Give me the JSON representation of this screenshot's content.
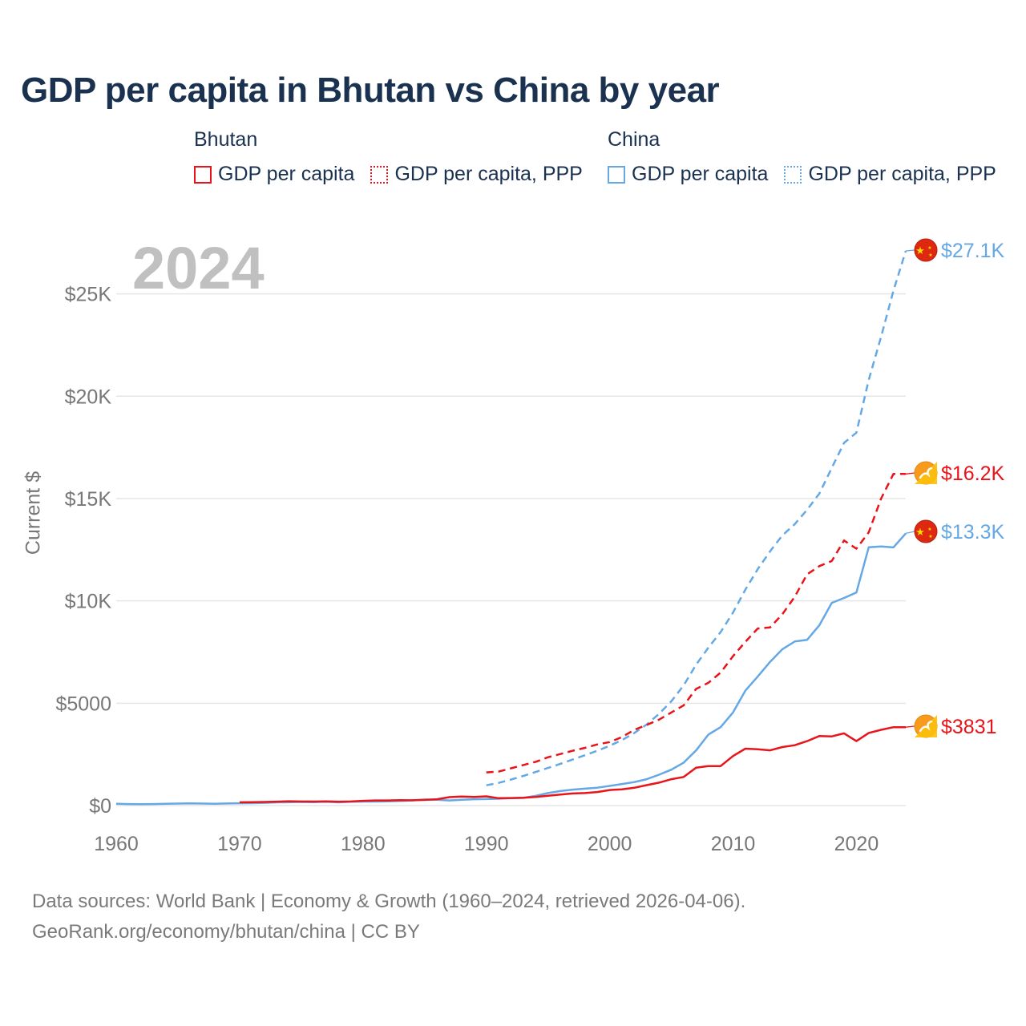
{
  "colors": {
    "bhutan": "#e8141a",
    "china": "#64a8e6",
    "grid": "#e6e6e6",
    "axis_text": "#777777"
  },
  "chart_data": {
    "type": "line",
    "title": "GDP per capita in Bhutan vs China by year",
    "highlight_year": "2024",
    "xlabel": "",
    "ylabel": "Current $",
    "xlim": [
      1960,
      2024
    ],
    "ylim": [
      0,
      27100
    ],
    "x_ticks": [
      1960,
      1970,
      1980,
      1990,
      2000,
      2010,
      2020
    ],
    "x_tick_labels": [
      "1960",
      "1970",
      "1980",
      "1990",
      "2000",
      "2010",
      "2020"
    ],
    "y_ticks": [
      0,
      5000,
      10000,
      15000,
      20000,
      25000
    ],
    "y_tick_labels": [
      "$0",
      "$5000",
      "$10K",
      "$15K",
      "$20K",
      "$25K"
    ],
    "legend": {
      "groups": [
        {
          "title": "Bhutan",
          "items": [
            "GDP per capita",
            "GDP per capita, PPP"
          ]
        },
        {
          "title": "China",
          "items": [
            "GDP per capita",
            "GDP per capita, PPP"
          ]
        }
      ]
    },
    "series": [
      {
        "name": "China GDP per capita, PPP",
        "country": "China",
        "color": "#64a8e6",
        "style": "dashed",
        "end_label": "$27.1K",
        "flag": "china-flag",
        "x": [
          1990,
          1991,
          1992,
          1993,
          1994,
          1995,
          1996,
          1997,
          1998,
          1999,
          2000,
          2001,
          2002,
          2003,
          2004,
          2005,
          2006,
          2007,
          2008,
          2009,
          2010,
          2011,
          2012,
          2013,
          2014,
          2015,
          2016,
          2017,
          2018,
          2019,
          2020,
          2021,
          2022,
          2023,
          2024
        ],
        "values": [
          990,
          1110,
          1270,
          1450,
          1640,
          1840,
          2040,
          2250,
          2460,
          2680,
          2920,
          3200,
          3550,
          3960,
          4480,
          5100,
          5880,
          6880,
          7720,
          8480,
          9430,
          10550,
          11550,
          12420,
          13200,
          13750,
          14450,
          15250,
          16500,
          17720,
          18220,
          20800,
          22900,
          25150,
          27100
        ]
      },
      {
        "name": "Bhutan GDP per capita, PPP",
        "country": "Bhutan",
        "color": "#e8141a",
        "style": "dashed",
        "end_label": "$16.2K",
        "flag": "bhutan-flag",
        "x": [
          1990,
          1991,
          1992,
          1993,
          1994,
          1995,
          1996,
          1997,
          1998,
          1999,
          2000,
          2001,
          2002,
          2003,
          2004,
          2005,
          2006,
          2007,
          2008,
          2009,
          2010,
          2011,
          2012,
          2013,
          2014,
          2015,
          2016,
          2017,
          2018,
          2019,
          2020,
          2021,
          2022,
          2023,
          2024
        ],
        "values": [
          1620,
          1660,
          1820,
          1980,
          2140,
          2360,
          2520,
          2680,
          2820,
          2990,
          3100,
          3350,
          3700,
          3940,
          4200,
          4550,
          4900,
          5700,
          6000,
          6500,
          7300,
          8000,
          8650,
          8700,
          9350,
          10200,
          11300,
          11700,
          11950,
          12950,
          12550,
          13350,
          15000,
          16200,
          16200
        ]
      },
      {
        "name": "China GDP per capita",
        "country": "China",
        "color": "#64a8e6",
        "style": "solid",
        "end_label": "$13.3K",
        "flag": "china-flag",
        "x": [
          1960,
          1961,
          1962,
          1963,
          1964,
          1965,
          1966,
          1967,
          1968,
          1969,
          1970,
          1971,
          1972,
          1973,
          1974,
          1975,
          1976,
          1977,
          1978,
          1979,
          1980,
          1981,
          1982,
          1983,
          1984,
          1985,
          1986,
          1987,
          1988,
          1989,
          1990,
          1991,
          1992,
          1993,
          1994,
          1995,
          1996,
          1997,
          1998,
          1999,
          2000,
          2001,
          2002,
          2003,
          2004,
          2005,
          2006,
          2007,
          2008,
          2009,
          2010,
          2011,
          2012,
          2013,
          2014,
          2015,
          2016,
          2017,
          2018,
          2019,
          2020,
          2021,
          2022,
          2023,
          2024
        ],
        "values": [
          90,
          76,
          70,
          74,
          85,
          98,
          104,
          96,
          91,
          100,
          113,
          119,
          132,
          157,
          160,
          178,
          165,
          185,
          156,
          183,
          195,
          197,
          203,
          225,
          251,
          294,
          282,
          251,
          284,
          311,
          318,
          333,
          366,
          377,
          473,
          610,
          709,
          781,
          828,
          873,
          959,
          1053,
          1149,
          1289,
          1509,
          1753,
          2099,
          2694,
          3468,
          3832,
          4550,
          5614,
          6300,
          7020,
          7640,
          8016,
          8094,
          8817,
          9905,
          10144,
          10409,
          12618,
          12662,
          12614,
          13300
        ]
      },
      {
        "name": "Bhutan GDP per capita",
        "country": "Bhutan",
        "color": "#e8141a",
        "style": "solid",
        "end_label": "$3831",
        "flag": "bhutan-flag",
        "x": [
          1970,
          1971,
          1972,
          1973,
          1974,
          1975,
          1976,
          1977,
          1978,
          1979,
          1980,
          1981,
          1982,
          1983,
          1984,
          1985,
          1986,
          1987,
          1988,
          1989,
          1990,
          1991,
          1992,
          1993,
          1994,
          1995,
          1996,
          1997,
          1998,
          1999,
          2000,
          2001,
          2002,
          2003,
          2004,
          2005,
          2006,
          2007,
          2008,
          2009,
          2010,
          2011,
          2012,
          2013,
          2014,
          2015,
          2016,
          2017,
          2018,
          2019,
          2020,
          2021,
          2022,
          2023,
          2024
        ],
        "values": [
          160,
          170,
          175,
          190,
          210,
          200,
          195,
          205,
          190,
          200,
          230,
          250,
          250,
          265,
          260,
          280,
          310,
          410,
          440,
          420,
          450,
          360,
          370,
          380,
          420,
          480,
          540,
          590,
          610,
          660,
          760,
          790,
          870,
          1000,
          1120,
          1290,
          1400,
          1850,
          1930,
          1930,
          2420,
          2780,
          2750,
          2700,
          2860,
          2950,
          3150,
          3400,
          3380,
          3530,
          3150,
          3550,
          3700,
          3831,
          3831
        ]
      }
    ]
  },
  "footer": {
    "sources": "Data sources: World Bank | Economy & Growth (1960–2024, retrieved 2026-04-06).",
    "attribution": "GeoRank.org/economy/bhutan/china | CC BY"
  }
}
